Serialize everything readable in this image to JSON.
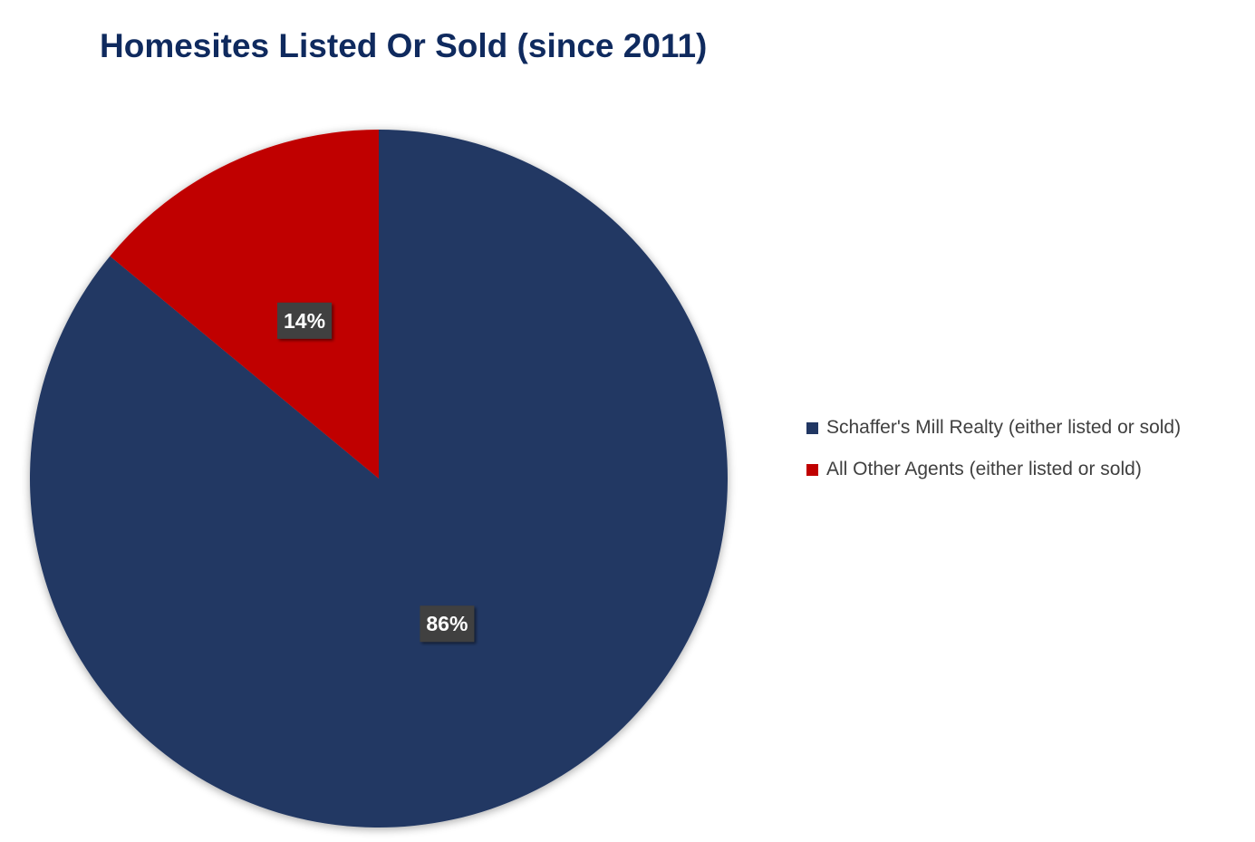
{
  "chart_data": {
    "type": "pie",
    "title": "Homesites Listed Or Sold (since 2011)",
    "categories": [
      "Schaffer's Mill Realty (either listed or sold)",
      "All Other Agents (either listed or sold)"
    ],
    "values": [
      86,
      14
    ],
    "data_labels": [
      "86%",
      "14%"
    ],
    "colors": [
      "#213763",
      "#c00000"
    ],
    "legend_position": "right"
  }
}
